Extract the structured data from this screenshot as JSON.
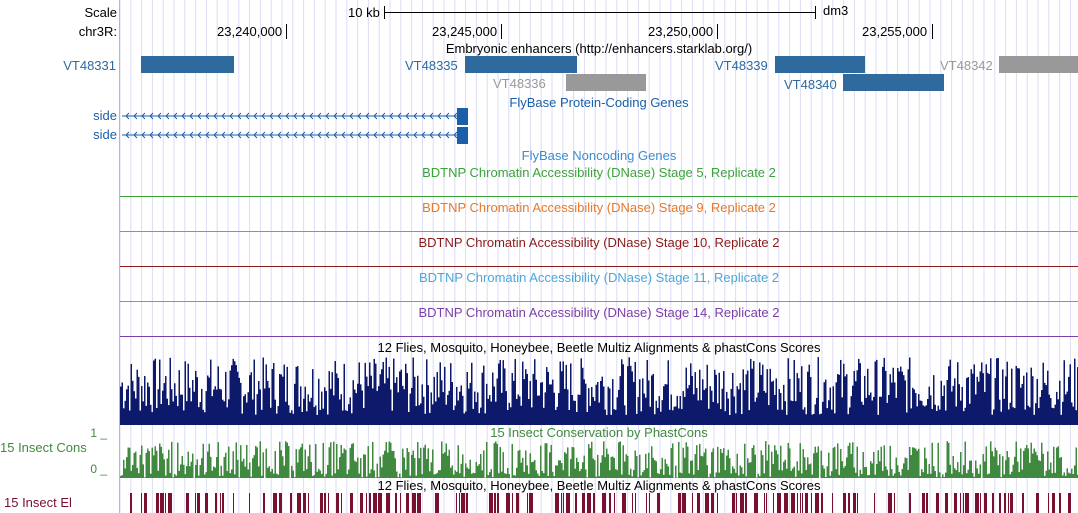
{
  "left_labels": {
    "scale": "Scale",
    "chrom": "chr3R:",
    "enh": "VT48331",
    "gene1": "side",
    "gene2": "side",
    "insect_cons": "15 Insect Cons",
    "insect_el": "15 Insect El",
    "cons_max": "1 _",
    "cons_min": "0 _"
  },
  "ruler": {
    "scale_text": "10 kb",
    "assembly": "dm3",
    "ticks": [
      "23,240,000",
      "23,245,000",
      "23,250,000",
      "23,255,000"
    ]
  },
  "tracks": {
    "enhancers_title": "Embryonic enhancers (http://enhancers.starklab.org/)",
    "protein_genes_title": "FlyBase Protein-Coding Genes",
    "noncoding_title": "FlyBase Noncoding Genes",
    "dnase5": "BDTNP Chromatin Accessibility (DNase) Stage 5, Replicate 2",
    "dnase9": "BDTNP Chromatin Accessibility (DNase) Stage 9, Replicate 2",
    "dnase10": "BDTNP Chromatin Accessibility (DNase) Stage 10, Replicate 2",
    "dnase11": "BDTNP Chromatin Accessibility (DNase) Stage 11, Replicate 2",
    "dnase14": "BDTNP Chromatin Accessibility (DNase) Stage 14, Replicate 2",
    "multiz": "12 Flies, Mosquito, Honeybee, Beetle Multiz Alignments & phastCons Scores",
    "insect_cons_title": "15 Insect Conservation by PhastCons",
    "multiz2": "12 Flies, Mosquito, Honeybee, Beetle Multiz Alignments & phastCons Scores"
  },
  "enhancers": [
    {
      "name": "VT48335",
      "color": "blue"
    },
    {
      "name": "VT48336",
      "color": "gray"
    },
    {
      "name": "VT48339",
      "color": "blue"
    },
    {
      "name": "VT48340",
      "color": "blue"
    },
    {
      "name": "VT48342",
      "color": "gray"
    }
  ],
  "colors": {
    "enh_blue": "#2e6a9e",
    "enh_gray": "#999999",
    "gene_blue": "#1a5fa8",
    "dnase5": "#3aa33a",
    "dnase9": "#e8782a",
    "dnase10": "#8b1a1a",
    "dnase11": "#4aa8d8",
    "dnase14": "#7a3fa8",
    "multiz": "#0d1a6b",
    "phastcons": "#3f8a3f",
    "elements": "#7a1030"
  }
}
